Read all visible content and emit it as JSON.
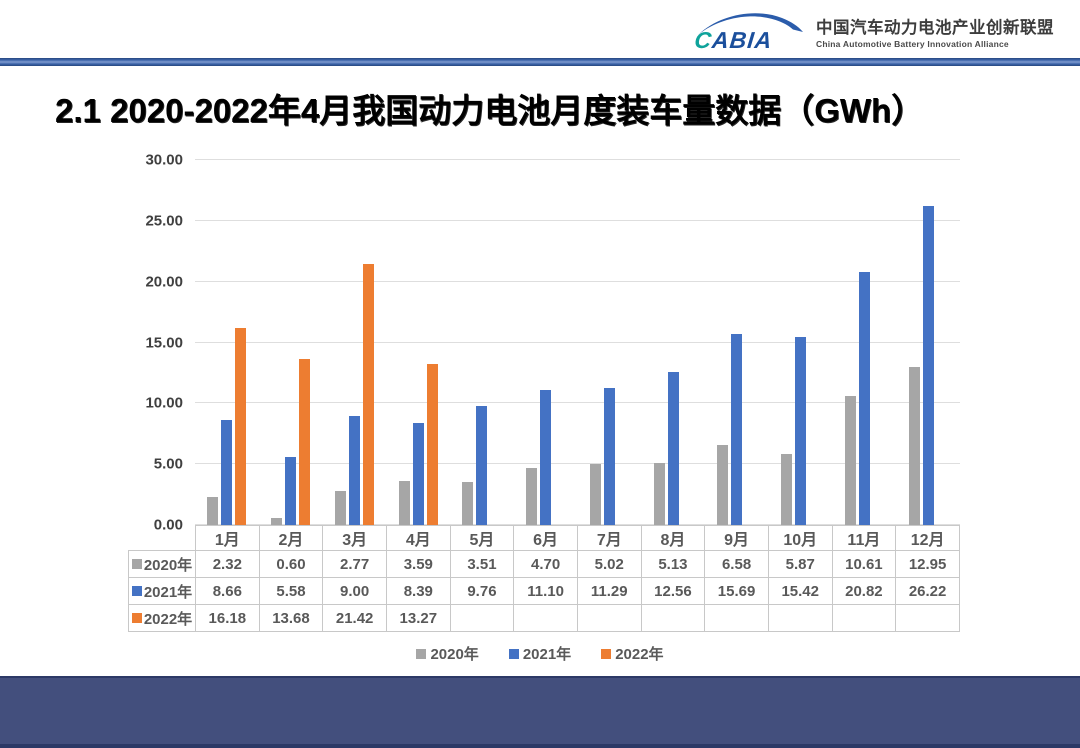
{
  "header": {
    "logo_c": "C",
    "logo_rest": "ABIA",
    "org_name_cn": "中国汽车动力电池产业创新联盟",
    "org_name_en": "China Automotive Battery Innovation Alliance"
  },
  "title": "2.1 2020-2022年4月我国动力电池月度装车量数据（GWh）",
  "chart_data": {
    "type": "bar",
    "title": "2.1 2020-2022年4月我国动力电池月度装车量数据（GWh）",
    "unit": "GWh",
    "categories": [
      "1月",
      "2月",
      "3月",
      "4月",
      "5月",
      "6月",
      "7月",
      "8月",
      "9月",
      "10月",
      "11月",
      "12月"
    ],
    "series": [
      {
        "name": "2020年",
        "color": "#a6a6a6",
        "values": [
          2.32,
          0.6,
          2.77,
          3.59,
          3.51,
          4.7,
          5.02,
          5.13,
          6.58,
          5.87,
          10.61,
          12.95
        ]
      },
      {
        "name": "2021年",
        "color": "#4472c4",
        "values": [
          8.66,
          5.58,
          9.0,
          8.39,
          9.76,
          11.1,
          11.29,
          12.56,
          15.69,
          15.42,
          20.82,
          26.22
        ]
      },
      {
        "name": "2022年",
        "color": "#ed7d31",
        "values": [
          16.18,
          13.68,
          21.42,
          13.27,
          null,
          null,
          null,
          null,
          null,
          null,
          null,
          null
        ]
      }
    ],
    "ylim": [
      0,
      30
    ],
    "ytick": 5,
    "xlabel": "",
    "ylabel": "",
    "grid": true,
    "legend_position": "bottom",
    "data_table_shown": true
  },
  "colors": {
    "series_2020": "#a6a6a6",
    "series_2021": "#4472c4",
    "series_2022": "#ed7d31",
    "footer_band": "#434f7d",
    "divider_line": "#3b63a8",
    "logo_blue": "#1b4f9c",
    "logo_teal": "#0fa39b"
  }
}
